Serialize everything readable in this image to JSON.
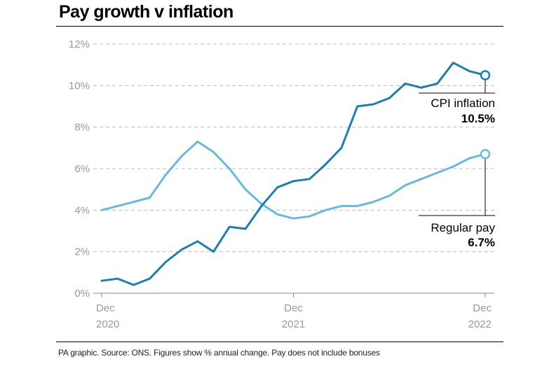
{
  "title": "Pay growth v inflation",
  "footnote": "PA graphic. Source: ONS. Figures show % annual change. Pay does not include bonuses",
  "chart_data": {
    "type": "line",
    "title": "Pay growth v inflation",
    "ylim": [
      0,
      12
    ],
    "y_ticks": [
      {
        "value": 0,
        "label": "0%"
      },
      {
        "value": 2,
        "label": "2%"
      },
      {
        "value": 4,
        "label": "4%"
      },
      {
        "value": 6,
        "label": "6%"
      },
      {
        "value": 8,
        "label": "8%"
      },
      {
        "value": 10,
        "label": "10%"
      },
      {
        "value": 12,
        "label": "12%"
      }
    ],
    "x_ticks": [
      {
        "date": "2020-12",
        "line1": "Dec",
        "line2": "2020"
      },
      {
        "date": "2021-12",
        "line1": "Dec",
        "line2": "2021"
      },
      {
        "date": "2022-12",
        "line1": "Dec",
        "line2": "2022"
      }
    ],
    "grid": "horizontal dashed",
    "x": [
      "2020-12",
      "2021-01",
      "2021-02",
      "2021-03",
      "2021-04",
      "2021-05",
      "2021-06",
      "2021-07",
      "2021-08",
      "2021-09",
      "2021-10",
      "2021-11",
      "2021-12",
      "2022-01",
      "2022-02",
      "2022-03",
      "2022-04",
      "2022-05",
      "2022-06",
      "2022-07",
      "2022-08",
      "2022-09",
      "2022-10",
      "2022-11",
      "2022-12"
    ],
    "series": [
      {
        "name": "CPI inflation",
        "color": "#1f7eab",
        "values": [
          0.6,
          0.7,
          0.4,
          0.7,
          1.5,
          2.1,
          2.5,
          2.0,
          3.2,
          3.1,
          4.2,
          5.1,
          5.4,
          5.5,
          6.2,
          7.0,
          9.0,
          9.1,
          9.4,
          10.1,
          9.9,
          10.1,
          11.1,
          10.7,
          10.5
        ],
        "end_label": "CPI inflation",
        "end_value": "10.5%"
      },
      {
        "name": "Regular pay",
        "color": "#6bb8d8",
        "values": [
          4.0,
          4.2,
          4.4,
          4.6,
          5.7,
          6.6,
          7.3,
          6.8,
          6.0,
          5.0,
          4.3,
          3.8,
          3.6,
          3.7,
          4.0,
          4.2,
          4.2,
          4.4,
          4.7,
          5.2,
          5.5,
          5.8,
          6.1,
          6.5,
          6.7
        ],
        "end_label": "Regular pay",
        "end_value": "6.7%"
      }
    ]
  }
}
